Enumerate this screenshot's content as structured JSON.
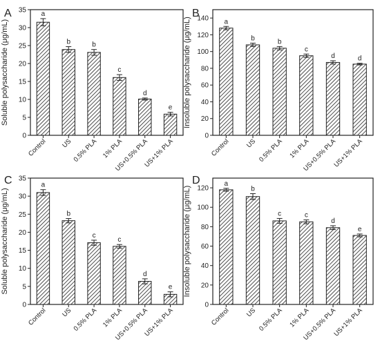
{
  "categories": [
    "Control",
    "US",
    "0.5% PLA",
    "1% PLA",
    "US+0.5% PLA",
    "US+1% PLA"
  ],
  "chart_data": [
    {
      "panel": "A",
      "type": "bar",
      "pattern": "diagonal-hatch",
      "categories": [
        "Control",
        "US",
        "0.5% PLA",
        "1% PLA",
        "US+0.5% PLA",
        "US+1% PLA"
      ],
      "values": [
        31.5,
        23.9,
        23.1,
        16.1,
        10.1,
        5.9
      ],
      "errors": [
        1.0,
        0.8,
        0.8,
        0.8,
        0.3,
        0.5
      ],
      "letters": [
        "a",
        "b",
        "b",
        "c",
        "d",
        "e"
      ],
      "ylabel": "Soluble polysaccharide (μg/mL)",
      "ylim": [
        0,
        35
      ],
      "yticks": [
        0,
        5,
        10,
        15,
        20,
        25,
        30,
        35
      ]
    },
    {
      "panel": "B",
      "type": "bar",
      "pattern": "diagonal-hatch",
      "categories": [
        "Control",
        "US",
        "0.5% PLA",
        "1% PLA",
        "US+0.5% PLA",
        "US+1% PLA"
      ],
      "values": [
        128,
        108,
        104,
        95,
        87,
        85
      ],
      "errors": [
        2,
        2,
        2,
        2,
        2,
        1
      ],
      "letters": [
        "a",
        "b",
        "b",
        "c",
        "d",
        "d"
      ],
      "ylabel": "Insoluble polysaccharide (μg/mL)",
      "ylim": [
        0,
        150
      ],
      "yticks": [
        0,
        20,
        40,
        60,
        80,
        100,
        120,
        140
      ]
    },
    {
      "panel": "C",
      "type": "bar",
      "pattern": "diagonal-hatch",
      "categories": [
        "Control",
        "US",
        "0.5% PLA",
        "1% PLA",
        "US+0.5% PLA",
        "US+1% PLA"
      ],
      "values": [
        31.0,
        23.2,
        17.1,
        16.1,
        6.4,
        2.8
      ],
      "errors": [
        0.8,
        0.6,
        0.7,
        0.5,
        0.7,
        0.7
      ],
      "letters": [
        "a",
        "b",
        "c",
        "c",
        "d",
        "e"
      ],
      "ylabel": "Soluble polysaccharide (μg/mL)",
      "ylim": [
        0,
        35
      ],
      "yticks": [
        0,
        5,
        10,
        15,
        20,
        25,
        30,
        35
      ]
    },
    {
      "panel": "D",
      "type": "bar",
      "pattern": "diagonal-hatch",
      "categories": [
        "Control",
        "US",
        "0.5% PLA",
        "1% PLA",
        "US+0.5% PLA",
        "US+1% PLA"
      ],
      "values": [
        118,
        111,
        86,
        85,
        79,
        71
      ],
      "errors": [
        1.5,
        3,
        2.5,
        2,
        2,
        1.5
      ],
      "letters": [
        "a",
        "b",
        "c",
        "c",
        "d",
        "e"
      ],
      "ylabel": "Insoluble polysaccharide (μg/mL)",
      "ylim": [
        0,
        130
      ],
      "yticks": [
        0,
        20,
        40,
        60,
        80,
        100,
        120
      ]
    }
  ]
}
